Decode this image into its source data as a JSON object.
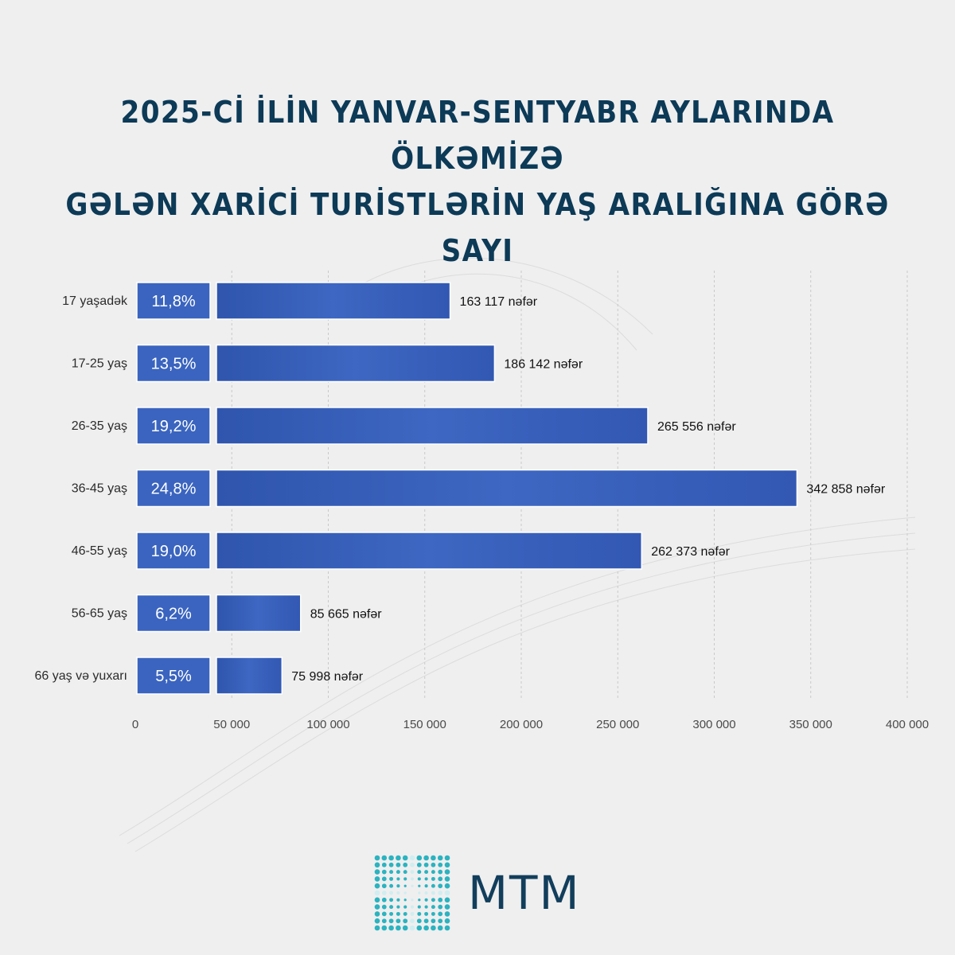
{
  "title": {
    "line1": "2025-Cİ İLİN YANVAR-SENTYABR AYLARINDA ÖLKƏMİZƏ",
    "line2": "GƏLƏN XARİCİ TURİSTLƏRİN YAŞ ARALIĞINA GÖRƏ SAYI"
  },
  "chart_data": {
    "type": "bar",
    "orientation": "horizontal",
    "categories": [
      "17 yaşadək",
      "17-25 yaş",
      "26-35 yaş",
      "36-45 yaş",
      "46-55 yaş",
      "56-65 yaş",
      "66 yaş və yuxarı"
    ],
    "values": [
      163117,
      186142,
      265556,
      342858,
      262373,
      85665,
      75998
    ],
    "percentages": [
      "11,8%",
      "13,5%",
      "19,2%",
      "24,8%",
      "19,0%",
      "6,2%",
      "5,5%"
    ],
    "value_labels": [
      "163 117 nəfər",
      "186 142 nəfər",
      "265 556 nəfər",
      "342 858 nəfər",
      "262 373 nəfər",
      "85 665 nəfər",
      "75 998 nəfər"
    ],
    "xlim": [
      0,
      400000
    ],
    "xticks": [
      0,
      50000,
      100000,
      150000,
      200000,
      250000,
      300000,
      350000,
      400000
    ],
    "xtick_labels": [
      "0",
      "50 000",
      "100 000",
      "150 000",
      "200 000",
      "250 000",
      "300 000",
      "350 000",
      "400 000"
    ],
    "grid": "vertical dashed",
    "bar_color": "#3a64bf",
    "percent_box_color": "#3a64bf"
  },
  "logo": {
    "text": "MTM",
    "accent": "#2bb3c0"
  }
}
